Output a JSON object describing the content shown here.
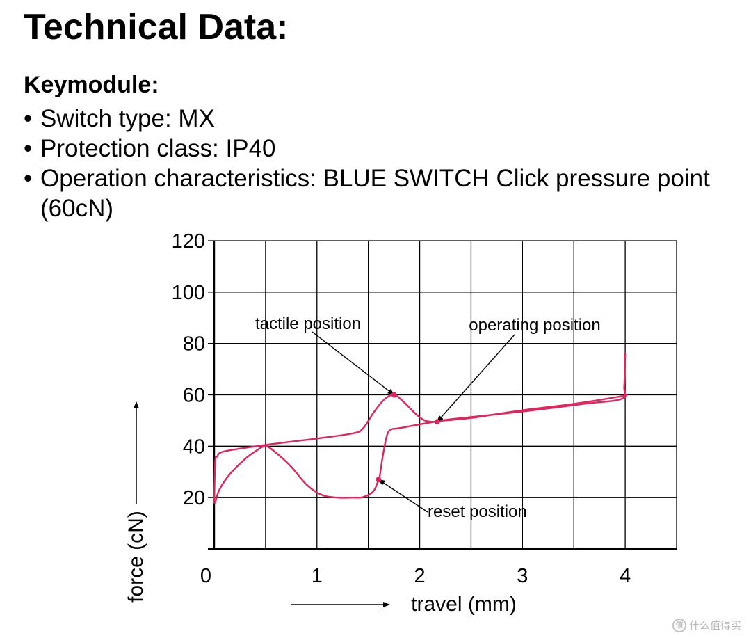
{
  "page": {
    "title": "Technical Data:",
    "subtitle": "Keymodule:",
    "bullets": [
      "Switch type: MX",
      "Protection class: IP40",
      "Operation characteristics: BLUE SWITCH Click pressure point (60cN)"
    ],
    "bullet_symbol": "•"
  },
  "watermark": {
    "text": "什么值得买",
    "icon_glyph": "值"
  },
  "chart_data": {
    "type": "line",
    "xlabel": "travel (mm)",
    "ylabel": "force (cN)",
    "xlim": [
      0,
      4.5
    ],
    "ylim": [
      0,
      120
    ],
    "x_ticks": [
      0,
      1,
      2,
      3,
      4
    ],
    "x_tick_labels": [
      "0",
      "1",
      "2",
      "3",
      "4"
    ],
    "y_ticks": [
      20,
      40,
      60,
      80,
      100,
      120
    ],
    "y_tick_labels": [
      "20",
      "40",
      "60",
      "80",
      "100",
      "120"
    ],
    "grid": true,
    "legend": false,
    "line_color": "#e0245e",
    "series": [
      {
        "values": [
          [
            0.0,
            18
          ],
          [
            0.01,
            34
          ],
          [
            0.03,
            36
          ],
          [
            0.1,
            38
          ],
          [
            0.5,
            40.5
          ],
          [
            1.0,
            43
          ],
          [
            1.35,
            45
          ],
          [
            1.45,
            47
          ],
          [
            1.55,
            53
          ],
          [
            1.65,
            58
          ],
          [
            1.75,
            60
          ],
          [
            1.85,
            57
          ],
          [
            1.95,
            53
          ],
          [
            2.05,
            50
          ],
          [
            2.17,
            49.5
          ],
          [
            2.3,
            50.5
          ],
          [
            3.0,
            53.5
          ],
          [
            3.6,
            56.5
          ],
          [
            3.97,
            58.5
          ],
          [
            3.99,
            63
          ],
          [
            4.0,
            76
          ]
        ]
      },
      {
        "values": [
          [
            4.0,
            60
          ],
          [
            3.97,
            59.5
          ],
          [
            3.5,
            56.5
          ],
          [
            3.0,
            54
          ],
          [
            2.5,
            51
          ],
          [
            2.2,
            49.8
          ],
          [
            2.0,
            48.5
          ],
          [
            1.8,
            47
          ],
          [
            1.72,
            46.5
          ],
          [
            1.68,
            44
          ],
          [
            1.64,
            36
          ],
          [
            1.61,
            28
          ],
          [
            1.6,
            27
          ],
          [
            1.55,
            22.5
          ],
          [
            1.45,
            20.2
          ],
          [
            1.35,
            20
          ],
          [
            1.2,
            20
          ],
          [
            1.05,
            21
          ],
          [
            0.9,
            25
          ],
          [
            0.75,
            32
          ],
          [
            0.6,
            37.5
          ],
          [
            0.5,
            40
          ],
          [
            0.4,
            38
          ],
          [
            0.3,
            35
          ],
          [
            0.15,
            29
          ],
          [
            0.05,
            23
          ],
          [
            0.01,
            18
          ]
        ]
      }
    ],
    "annotations": [
      {
        "text": "tactile position",
        "target": [
          1.75,
          60
        ]
      },
      {
        "text": "operating position",
        "target": [
          2.17,
          49.5
        ]
      },
      {
        "text": "reset position",
        "target": [
          1.6,
          27
        ]
      }
    ]
  }
}
